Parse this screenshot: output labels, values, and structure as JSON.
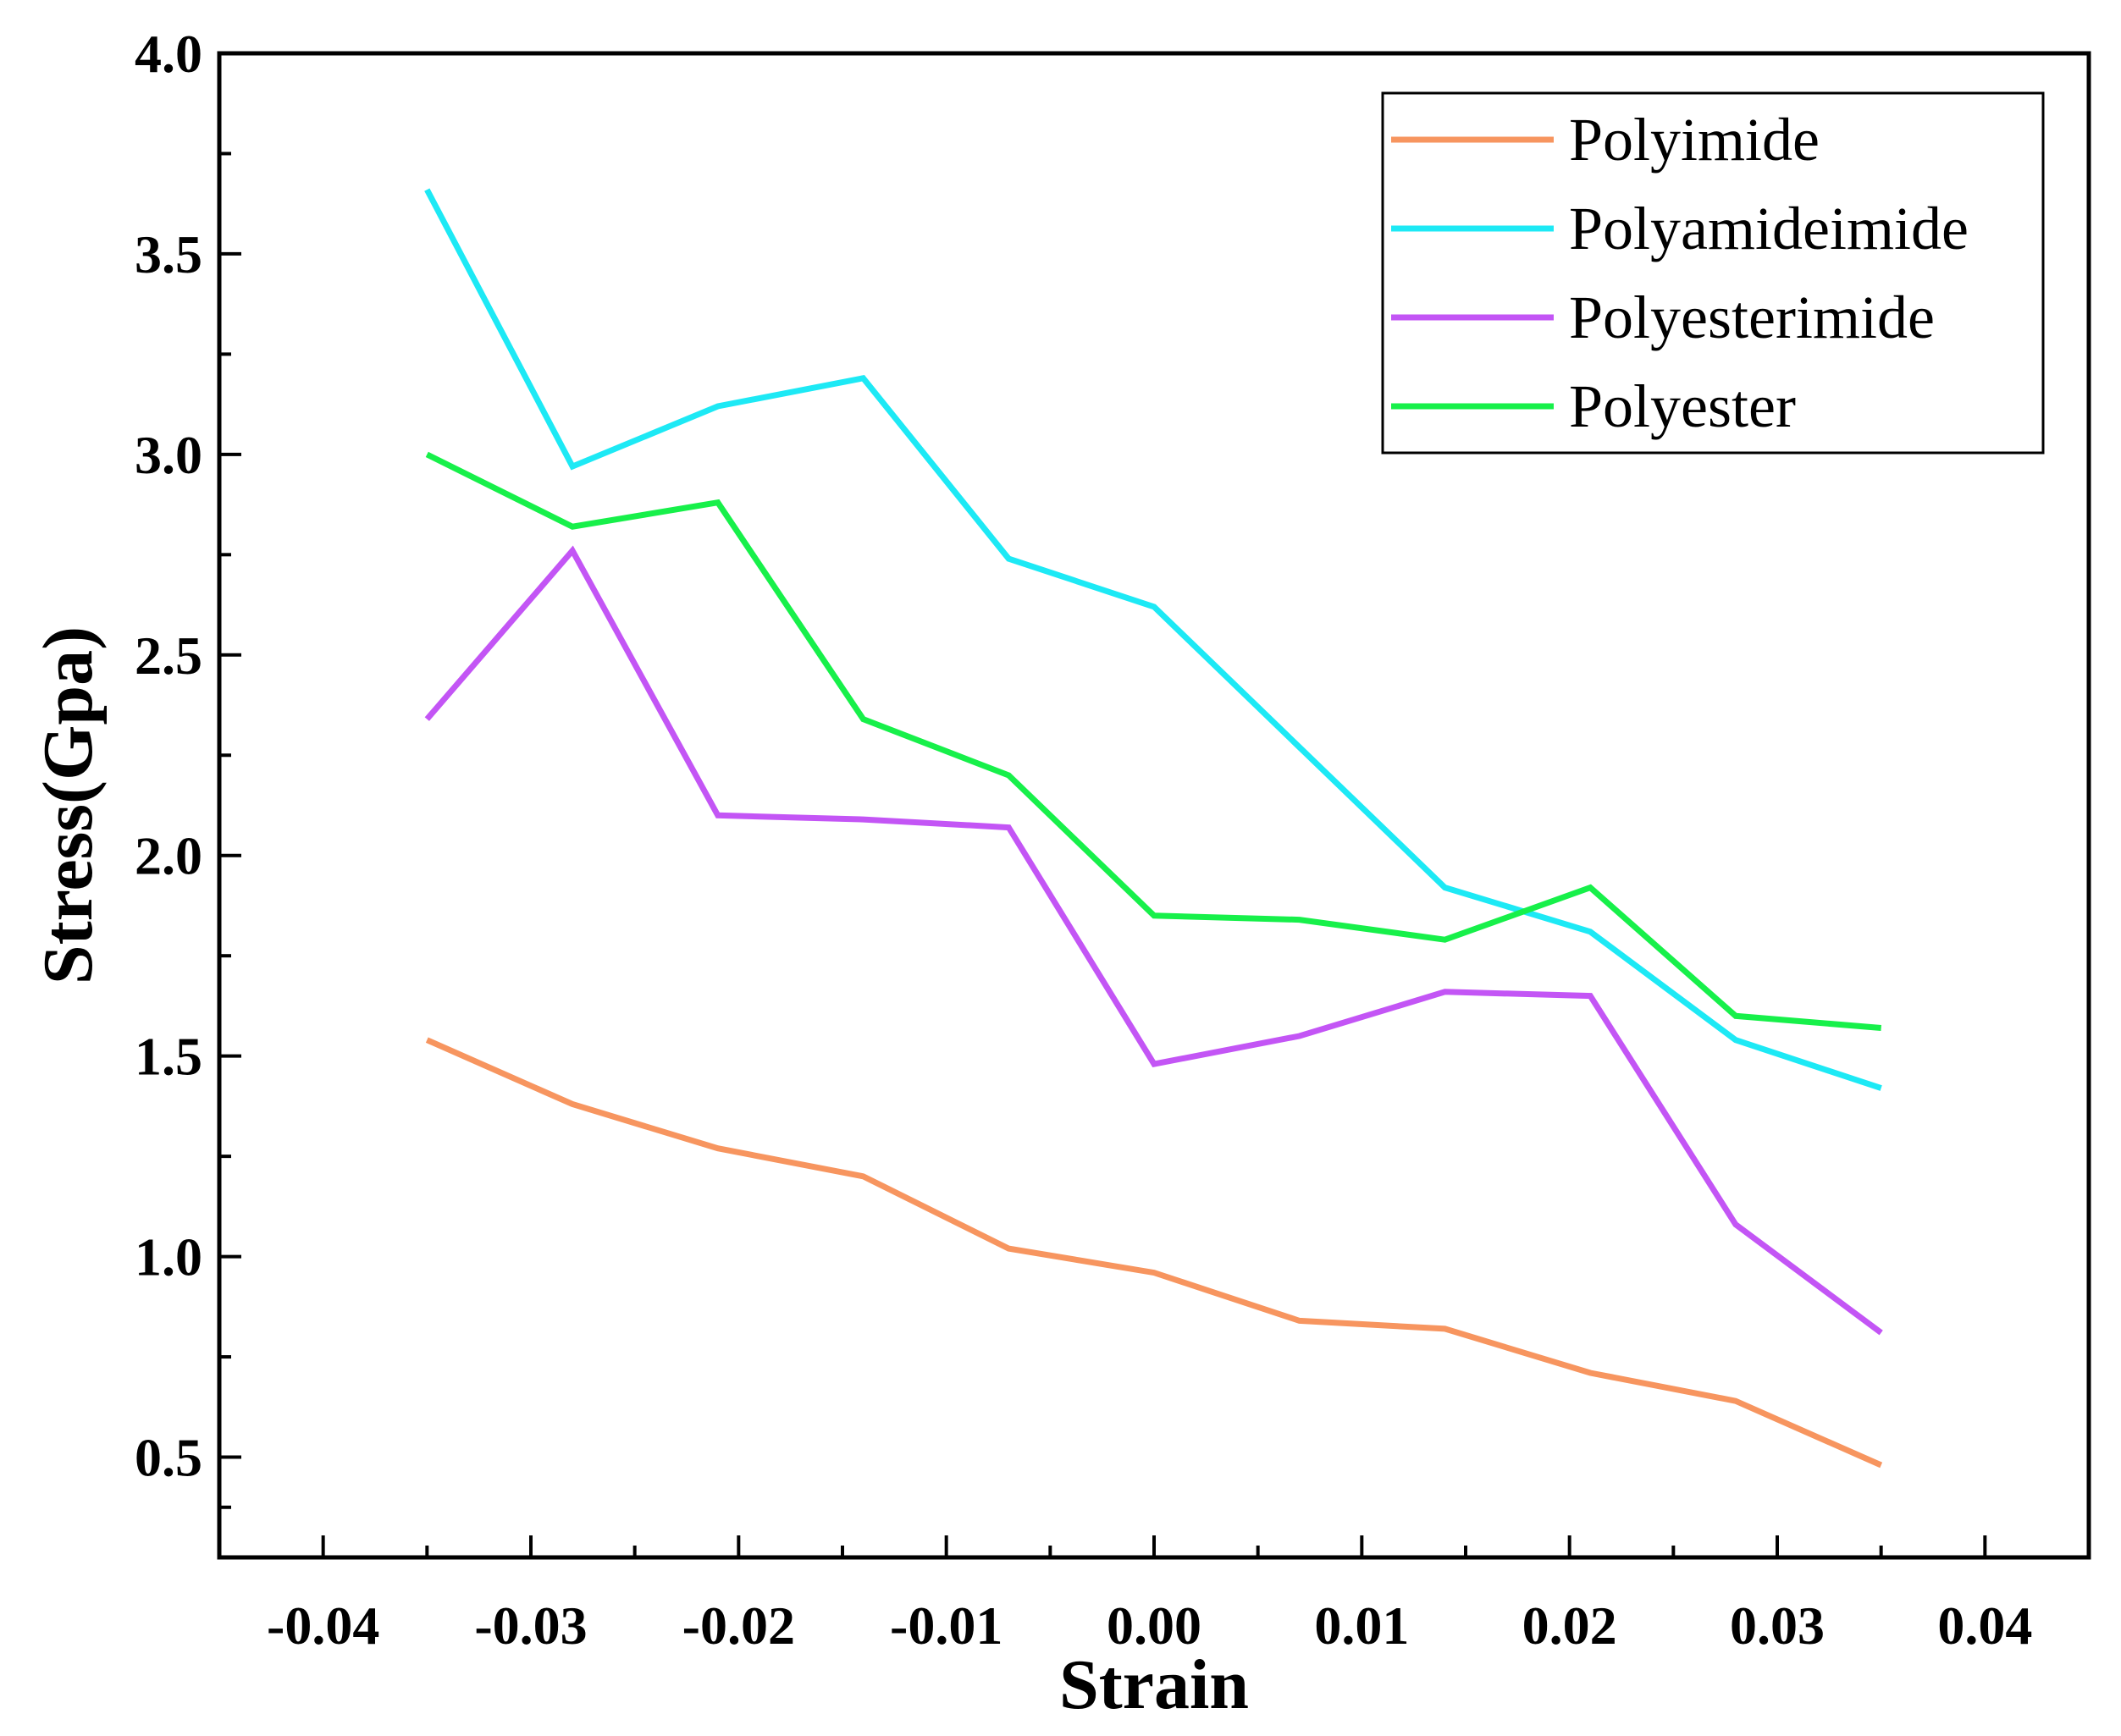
{
  "chart_data": {
    "type": "line",
    "title": "",
    "xlabel": "Strain",
    "ylabel": "Stress(Gpa)",
    "xlim": [
      -0.045,
      0.045
    ],
    "ylim": [
      0.25,
      4.0
    ],
    "x_ticks": [
      -0.04,
      -0.03,
      -0.02,
      -0.01,
      0.0,
      0.01,
      0.02,
      0.03,
      0.04
    ],
    "x_tick_labels": [
      "-0.04",
      "-0.03",
      "-0.02",
      "-0.01",
      "0.00",
      "0.01",
      "0.02",
      "0.03",
      "0.04"
    ],
    "y_ticks": [
      0.5,
      1.0,
      1.5,
      2.0,
      2.5,
      3.0,
      3.5,
      4.0
    ],
    "y_tick_labels": [
      "0.5",
      "1.0",
      "1.5",
      "2.0",
      "2.5",
      "3.0",
      "3.5",
      "4.0"
    ],
    "grid": false,
    "legend_position": "top-right",
    "x": [
      -0.035,
      -0.028,
      -0.021,
      -0.014,
      -0.007,
      0.0,
      0.007,
      0.014,
      0.021,
      0.028,
      0.035
    ],
    "series": [
      {
        "name": "Polyimide",
        "color": "#F7955F",
        "values": [
          1.54,
          1.38,
          1.27,
          1.2,
          1.02,
          0.96,
          0.84,
          0.82,
          0.71,
          0.64,
          0.48
        ]
      },
      {
        "name": "Polyamideimide",
        "color": "#1DE9F5",
        "values": [
          3.66,
          2.97,
          3.12,
          3.19,
          2.74,
          2.62,
          2.27,
          1.92,
          1.81,
          1.54,
          1.42
        ]
      },
      {
        "name": "Polyesterimide",
        "color": "#C355F5",
        "values": [
          2.34,
          2.76,
          2.1,
          2.09,
          2.07,
          1.48,
          1.55,
          1.66,
          1.65,
          1.08,
          0.81
        ]
      },
      {
        "name": "Polyester",
        "color": "#17F04A",
        "values": [
          3.0,
          2.82,
          2.88,
          2.34,
          2.2,
          1.85,
          1.84,
          1.79,
          1.92,
          1.6,
          1.57
        ]
      }
    ]
  }
}
